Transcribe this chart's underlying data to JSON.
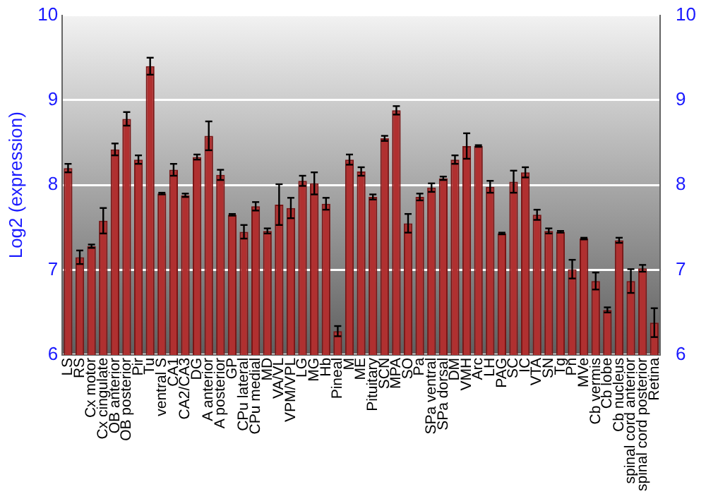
{
  "chart_data": {
    "type": "bar",
    "ylabel": "Log2 (expression)",
    "categories": [
      "LS",
      "RS",
      "Cx motor",
      "Cx cingulate",
      "OB anterior",
      "OB posterior",
      "Pir",
      "Tu",
      "ventral S",
      "CA1",
      "CA2/CA3",
      "DG",
      "A anterior",
      "A posterior",
      "GP",
      "CPu lateral",
      "CPu medial",
      "MD",
      "VA/VL",
      "VPM/VPL",
      "LG",
      "MG",
      "Hb",
      "Pineal",
      "M",
      "ME",
      "Pituitary",
      "SCN",
      "MPA",
      "SO",
      "Pa",
      "SPa ventral",
      "SPa dorsal",
      "DM",
      "VMH",
      "Arc",
      "LH",
      "PAG",
      "SC",
      "IC",
      "VTA",
      "SN",
      "Tg",
      "Pn",
      "MVe",
      "Cb vermis",
      "Cb lobe",
      "Cb nucleus",
      "spinal cord anterior",
      "spinal cord posterior",
      "Retina"
    ],
    "values": [
      8.2,
      7.15,
      7.28,
      7.58,
      8.42,
      8.78,
      8.3,
      9.4,
      7.9,
      8.18,
      7.88,
      8.33,
      8.58,
      8.12,
      7.65,
      7.45,
      7.75,
      7.46,
      7.77,
      7.73,
      8.05,
      8.02,
      7.78,
      6.28,
      8.3,
      8.16,
      7.86,
      8.55,
      8.88,
      7.55,
      7.86,
      7.97,
      8.08,
      8.3,
      8.46,
      8.46,
      7.98,
      7.43,
      8.04,
      8.15,
      7.65,
      7.46,
      7.45,
      7.01,
      7.37,
      6.87,
      6.53,
      7.35,
      6.87,
      7.02,
      6.38
    ],
    "errors": [
      0.05,
      0.08,
      0.02,
      0.15,
      0.07,
      0.08,
      0.05,
      0.1,
      0.01,
      0.07,
      0.02,
      0.03,
      0.17,
      0.06,
      0.01,
      0.08,
      0.05,
      0.03,
      0.24,
      0.12,
      0.06,
      0.13,
      0.07,
      0.06,
      0.06,
      0.05,
      0.03,
      0.03,
      0.05,
      0.11,
      0.04,
      0.05,
      0.02,
      0.05,
      0.15,
      0.01,
      0.07,
      0.01,
      0.13,
      0.06,
      0.06,
      0.03,
      0.01,
      0.11,
      0.01,
      0.1,
      0.03,
      0.03,
      0.14,
      0.04,
      0.17
    ],
    "color": "#b03030",
    "ylim": [
      6,
      10
    ],
    "yticks": [
      6,
      7,
      8,
      9,
      10
    ],
    "y2lim": [
      6,
      10
    ],
    "y2ticks": [
      6,
      7,
      8,
      9,
      10
    ],
    "grid": "y",
    "legend": false
  }
}
